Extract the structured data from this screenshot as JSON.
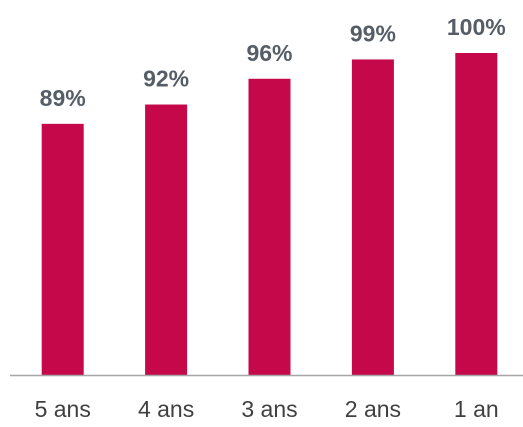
{
  "chart_data": {
    "type": "bar",
    "categories": [
      "5 ans",
      "4 ans",
      "3 ans",
      "2 ans",
      "1 an"
    ],
    "values": [
      89,
      92,
      96,
      99,
      100
    ],
    "value_labels": [
      "89%",
      "92%",
      "96%",
      "99%",
      "100%"
    ],
    "color": "#c4084a",
    "ylim": [
      50,
      100
    ]
  }
}
